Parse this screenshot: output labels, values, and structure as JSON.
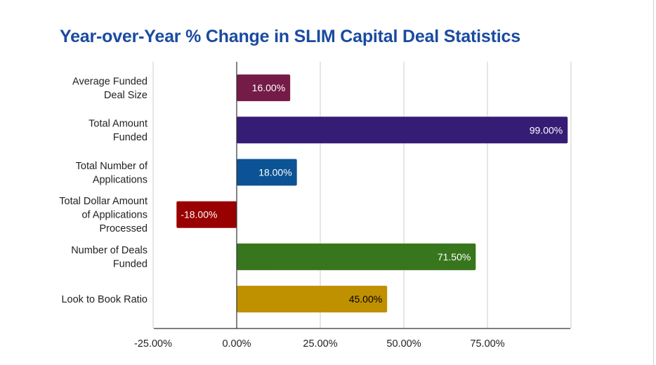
{
  "chart_data": {
    "type": "bar",
    "orientation": "horizontal",
    "title": "Year-over-Year % Change in SLIM Capital Deal Statistics",
    "xlabel": "",
    "ylabel": "",
    "xlim": [
      -25,
      100
    ],
    "grid": true,
    "legend": "none",
    "categories": [
      [
        "Average Funded",
        "Deal Size"
      ],
      [
        "Total Amount",
        "Funded"
      ],
      [
        "Total Number of",
        "Applications"
      ],
      [
        "Total Dollar Amount",
        "of Applications",
        "Processed"
      ],
      [
        "Number of Deals",
        "Funded"
      ],
      [
        "Look to Book Ratio"
      ]
    ],
    "values": [
      16.0,
      99.0,
      18.0,
      -18.0,
      71.5,
      45.0
    ],
    "data_labels": [
      "16.00%",
      "99.00%",
      "18.00%",
      "-18.00%",
      "71.50%",
      "45.00%"
    ],
    "colors": [
      "#741b47",
      "#351c75",
      "#0b5394",
      "#990000",
      "#38761d",
      "#bf9000"
    ],
    "label_colors": [
      "#ffffff",
      "#ffffff",
      "#ffffff",
      "#ffffff",
      "#ffffff",
      "#000000"
    ],
    "ticks": [
      {
        "value": -25,
        "label": "-25.00%"
      },
      {
        "value": 0,
        "label": "0.00%"
      },
      {
        "value": 25,
        "label": "25.00%"
      },
      {
        "value": 50,
        "label": "50.00%"
      },
      {
        "value": 75,
        "label": "75.00%"
      }
    ]
  }
}
